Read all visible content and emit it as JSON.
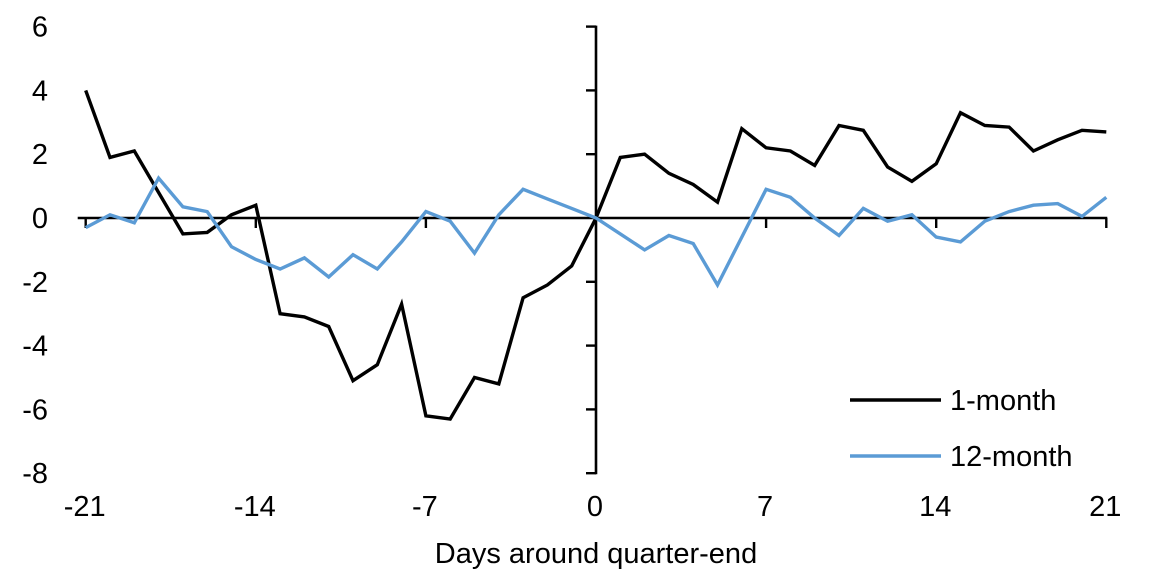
{
  "figure": {
    "background": "#ffffff",
    "axis_color": "#000000"
  },
  "chart_data": {
    "type": "line",
    "title": "",
    "xlabel": "Days around quarter-end",
    "ylabel": "",
    "xlim": [
      -21,
      21
    ],
    "ylim": [
      -8,
      6
    ],
    "grid": false,
    "legend_position": "inside-bottom-right",
    "x_ticks": [
      -21,
      -14,
      -7,
      0,
      7,
      14,
      21
    ],
    "x_tick_labels": [
      "-21",
      "-14",
      "-7",
      "0",
      "7",
      "14",
      "21"
    ],
    "y_ticks": [
      6,
      4,
      2,
      0,
      -2,
      -4,
      -6,
      -8
    ],
    "y_tick_labels": [
      "6",
      "4",
      "2",
      "0",
      "-2",
      "-4",
      "-6",
      "-8"
    ],
    "x": [
      -21,
      -20,
      -19,
      -18,
      -17,
      -16,
      -15,
      -14,
      -13,
      -12,
      -11,
      -10,
      -9,
      -8,
      -7,
      -6,
      -5,
      -4,
      -3,
      -2,
      -1,
      0,
      1,
      2,
      3,
      4,
      5,
      6,
      7,
      8,
      9,
      10,
      11,
      12,
      13,
      14,
      15,
      16,
      17,
      18,
      19,
      20,
      21
    ],
    "series": [
      {
        "name": "1-month",
        "color": "#000000",
        "values": [
          4.0,
          1.9,
          2.1,
          0.8,
          -0.5,
          -0.45,
          0.1,
          0.4,
          -3.0,
          -3.1,
          -3.4,
          -5.1,
          -4.6,
          -2.7,
          -6.2,
          -6.3,
          -5.0,
          -5.2,
          -2.5,
          -2.1,
          -1.5,
          0.0,
          1.9,
          2.0,
          1.4,
          1.05,
          0.5,
          2.8,
          2.2,
          2.1,
          1.65,
          2.9,
          2.75,
          1.6,
          1.15,
          1.7,
          3.3,
          2.9,
          2.85,
          2.1,
          2.45,
          2.75,
          2.7
        ]
      },
      {
        "name": "12-month",
        "color": "#5B9BD5",
        "values": [
          -0.3,
          0.1,
          -0.15,
          1.25,
          0.35,
          0.2,
          -0.9,
          -1.3,
          -1.6,
          -1.25,
          -1.85,
          -1.15,
          -1.6,
          -0.75,
          0.2,
          -0.1,
          -1.1,
          0.1,
          0.9,
          0.6,
          0.3,
          0.0,
          -0.5,
          -1.0,
          -0.55,
          -0.8,
          -2.1,
          -0.6,
          0.9,
          0.65,
          0.0,
          -0.55,
          0.3,
          -0.1,
          0.1,
          -0.6,
          -0.75,
          -0.1,
          0.2,
          0.4,
          0.45,
          0.05,
          0.65
        ]
      }
    ]
  },
  "legend": {
    "items": [
      {
        "label": "1-month",
        "color": "#000000"
      },
      {
        "label": "12-month",
        "color": "#5B9BD5"
      }
    ]
  }
}
